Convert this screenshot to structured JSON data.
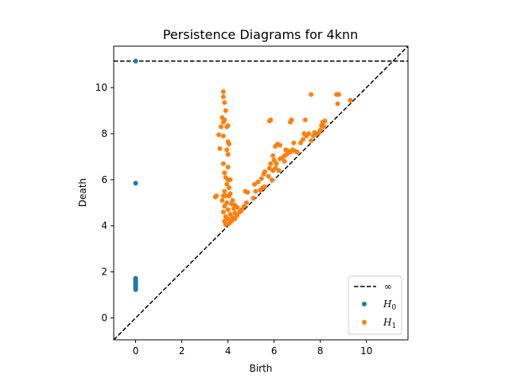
{
  "chart_data": {
    "type": "scatter",
    "title": "Persistence Diagrams for 4knn",
    "xlabel": "Birth",
    "ylabel": "Death",
    "xlim": [
      -0.95,
      11.8
    ],
    "ylim": [
      -0.95,
      11.8
    ],
    "xticks": [
      0,
      2,
      4,
      6,
      8,
      10
    ],
    "yticks": [
      0,
      2,
      4,
      6,
      8,
      10
    ],
    "infinity_value": 11.15,
    "legend": {
      "position": "lower-right",
      "entries": [
        {
          "label": "∞",
          "kind": "dashed-line",
          "color": "#000000"
        },
        {
          "label": "H",
          "subscript": "0",
          "kind": "marker",
          "color": "#1f77b4"
        },
        {
          "label": "H",
          "subscript": "1",
          "kind": "marker",
          "color": "#ff7f0e"
        }
      ]
    },
    "series": [
      {
        "name": "H0",
        "color": "#1f77b4",
        "points": [
          [
            0,
            11.15
          ],
          [
            0,
            5.85
          ],
          [
            0,
            1.72
          ],
          [
            0,
            1.68
          ],
          [
            0,
            1.64
          ],
          [
            0,
            1.6
          ],
          [
            0,
            1.56
          ],
          [
            0,
            1.52
          ],
          [
            0,
            1.48
          ],
          [
            0,
            1.45
          ],
          [
            0,
            1.42
          ],
          [
            0,
            1.38
          ],
          [
            0,
            1.35
          ],
          [
            0,
            1.31
          ],
          [
            0,
            1.27
          ],
          [
            0,
            1.23
          ]
        ]
      },
      {
        "name": "H1",
        "color": "#ff7f0e",
        "points": [
          [
            3.8,
            9.82
          ],
          [
            3.8,
            9.6
          ],
          [
            3.85,
            9.35
          ],
          [
            3.9,
            9.0
          ],
          [
            3.75,
            8.7
          ],
          [
            3.85,
            8.6
          ],
          [
            3.8,
            8.5
          ],
          [
            3.7,
            8.3
          ],
          [
            3.95,
            8.3
          ],
          [
            4.0,
            8.35
          ],
          [
            3.6,
            7.95
          ],
          [
            3.8,
            7.9
          ],
          [
            4.0,
            7.65
          ],
          [
            4.05,
            7.55
          ],
          [
            3.95,
            7.3
          ],
          [
            3.65,
            7.35
          ],
          [
            4.0,
            7.1
          ],
          [
            3.8,
            6.7
          ],
          [
            4.0,
            6.55
          ],
          [
            3.85,
            6.3
          ],
          [
            3.9,
            6.1
          ],
          [
            4.0,
            6.0
          ],
          [
            4.1,
            6.0
          ],
          [
            3.95,
            5.8
          ],
          [
            4.05,
            5.65
          ],
          [
            3.85,
            5.5
          ],
          [
            4.1,
            5.4
          ],
          [
            3.5,
            5.3
          ],
          [
            3.45,
            5.25
          ],
          [
            3.8,
            5.3
          ],
          [
            3.9,
            5.3
          ],
          [
            4.05,
            5.3
          ],
          [
            3.75,
            5.1
          ],
          [
            3.95,
            5.0
          ],
          [
            4.2,
            5.1
          ],
          [
            3.85,
            4.85
          ],
          [
            4.15,
            4.95
          ],
          [
            4.3,
            4.9
          ],
          [
            3.8,
            4.6
          ],
          [
            4.0,
            4.7
          ],
          [
            4.25,
            4.75
          ],
          [
            4.4,
            4.8
          ],
          [
            3.9,
            4.4
          ],
          [
            4.1,
            4.5
          ],
          [
            4.3,
            4.55
          ],
          [
            4.5,
            4.6
          ],
          [
            3.85,
            4.2
          ],
          [
            4.0,
            4.3
          ],
          [
            4.2,
            4.35
          ],
          [
            4.4,
            4.45
          ],
          [
            3.9,
            4.05
          ],
          [
            4.05,
            4.1
          ],
          [
            4.15,
            4.2
          ],
          [
            4.3,
            4.3
          ],
          [
            4.6,
            4.7
          ],
          [
            4.7,
            4.85
          ],
          [
            4.8,
            5.0
          ],
          [
            4.75,
            5.5
          ],
          [
            4.85,
            5.45
          ],
          [
            5.1,
            5.2
          ],
          [
            5.2,
            5.5
          ],
          [
            5.4,
            5.55
          ],
          [
            5.5,
            5.65
          ],
          [
            5.6,
            5.7
          ],
          [
            5.15,
            5.8
          ],
          [
            5.45,
            6.05
          ],
          [
            5.55,
            6.25
          ],
          [
            5.6,
            6.35
          ],
          [
            5.75,
            6.15
          ],
          [
            5.8,
            6.5
          ],
          [
            5.85,
            6.7
          ],
          [
            5.9,
            6.0
          ],
          [
            5.95,
            6.4
          ],
          [
            6.05,
            6.5
          ],
          [
            6.2,
            6.4
          ],
          [
            6.0,
            6.85
          ],
          [
            5.95,
            7.05
          ],
          [
            6.05,
            7.45
          ],
          [
            6.15,
            7.55
          ],
          [
            6.25,
            7.5
          ],
          [
            5.8,
            8.55
          ],
          [
            5.85,
            8.6
          ],
          [
            6.1,
            6.7
          ],
          [
            6.25,
            6.9
          ],
          [
            6.35,
            6.95
          ],
          [
            6.45,
            7.05
          ],
          [
            6.55,
            7.1
          ],
          [
            6.5,
            7.3
          ],
          [
            6.6,
            7.25
          ],
          [
            6.7,
            7.2
          ],
          [
            6.8,
            7.3
          ],
          [
            6.9,
            7.25
          ],
          [
            6.75,
            8.6
          ],
          [
            6.7,
            8.5
          ],
          [
            6.85,
            7.6
          ],
          [
            7.0,
            7.2
          ],
          [
            7.15,
            7.6
          ],
          [
            7.25,
            7.75
          ],
          [
            7.3,
            8.0
          ],
          [
            7.35,
            8.6
          ],
          [
            7.4,
            7.9
          ],
          [
            7.5,
            8.0
          ],
          [
            7.6,
            7.7
          ],
          [
            7.7,
            7.9
          ],
          [
            7.75,
            8.05
          ],
          [
            7.6,
            9.7
          ],
          [
            7.85,
            8.0
          ],
          [
            7.95,
            8.05
          ],
          [
            8.0,
            8.15
          ],
          [
            8.05,
            8.35
          ],
          [
            8.1,
            8.5
          ],
          [
            8.15,
            8.3
          ],
          [
            8.2,
            8.55
          ],
          [
            8.1,
            8.45
          ],
          [
            8.7,
            9.7
          ],
          [
            8.8,
            9.7
          ],
          [
            8.75,
            9.3
          ],
          [
            9.3,
            9.45
          ],
          [
            6.45,
            6.8
          ],
          [
            5.3,
            5.9
          ]
        ]
      }
    ]
  }
}
